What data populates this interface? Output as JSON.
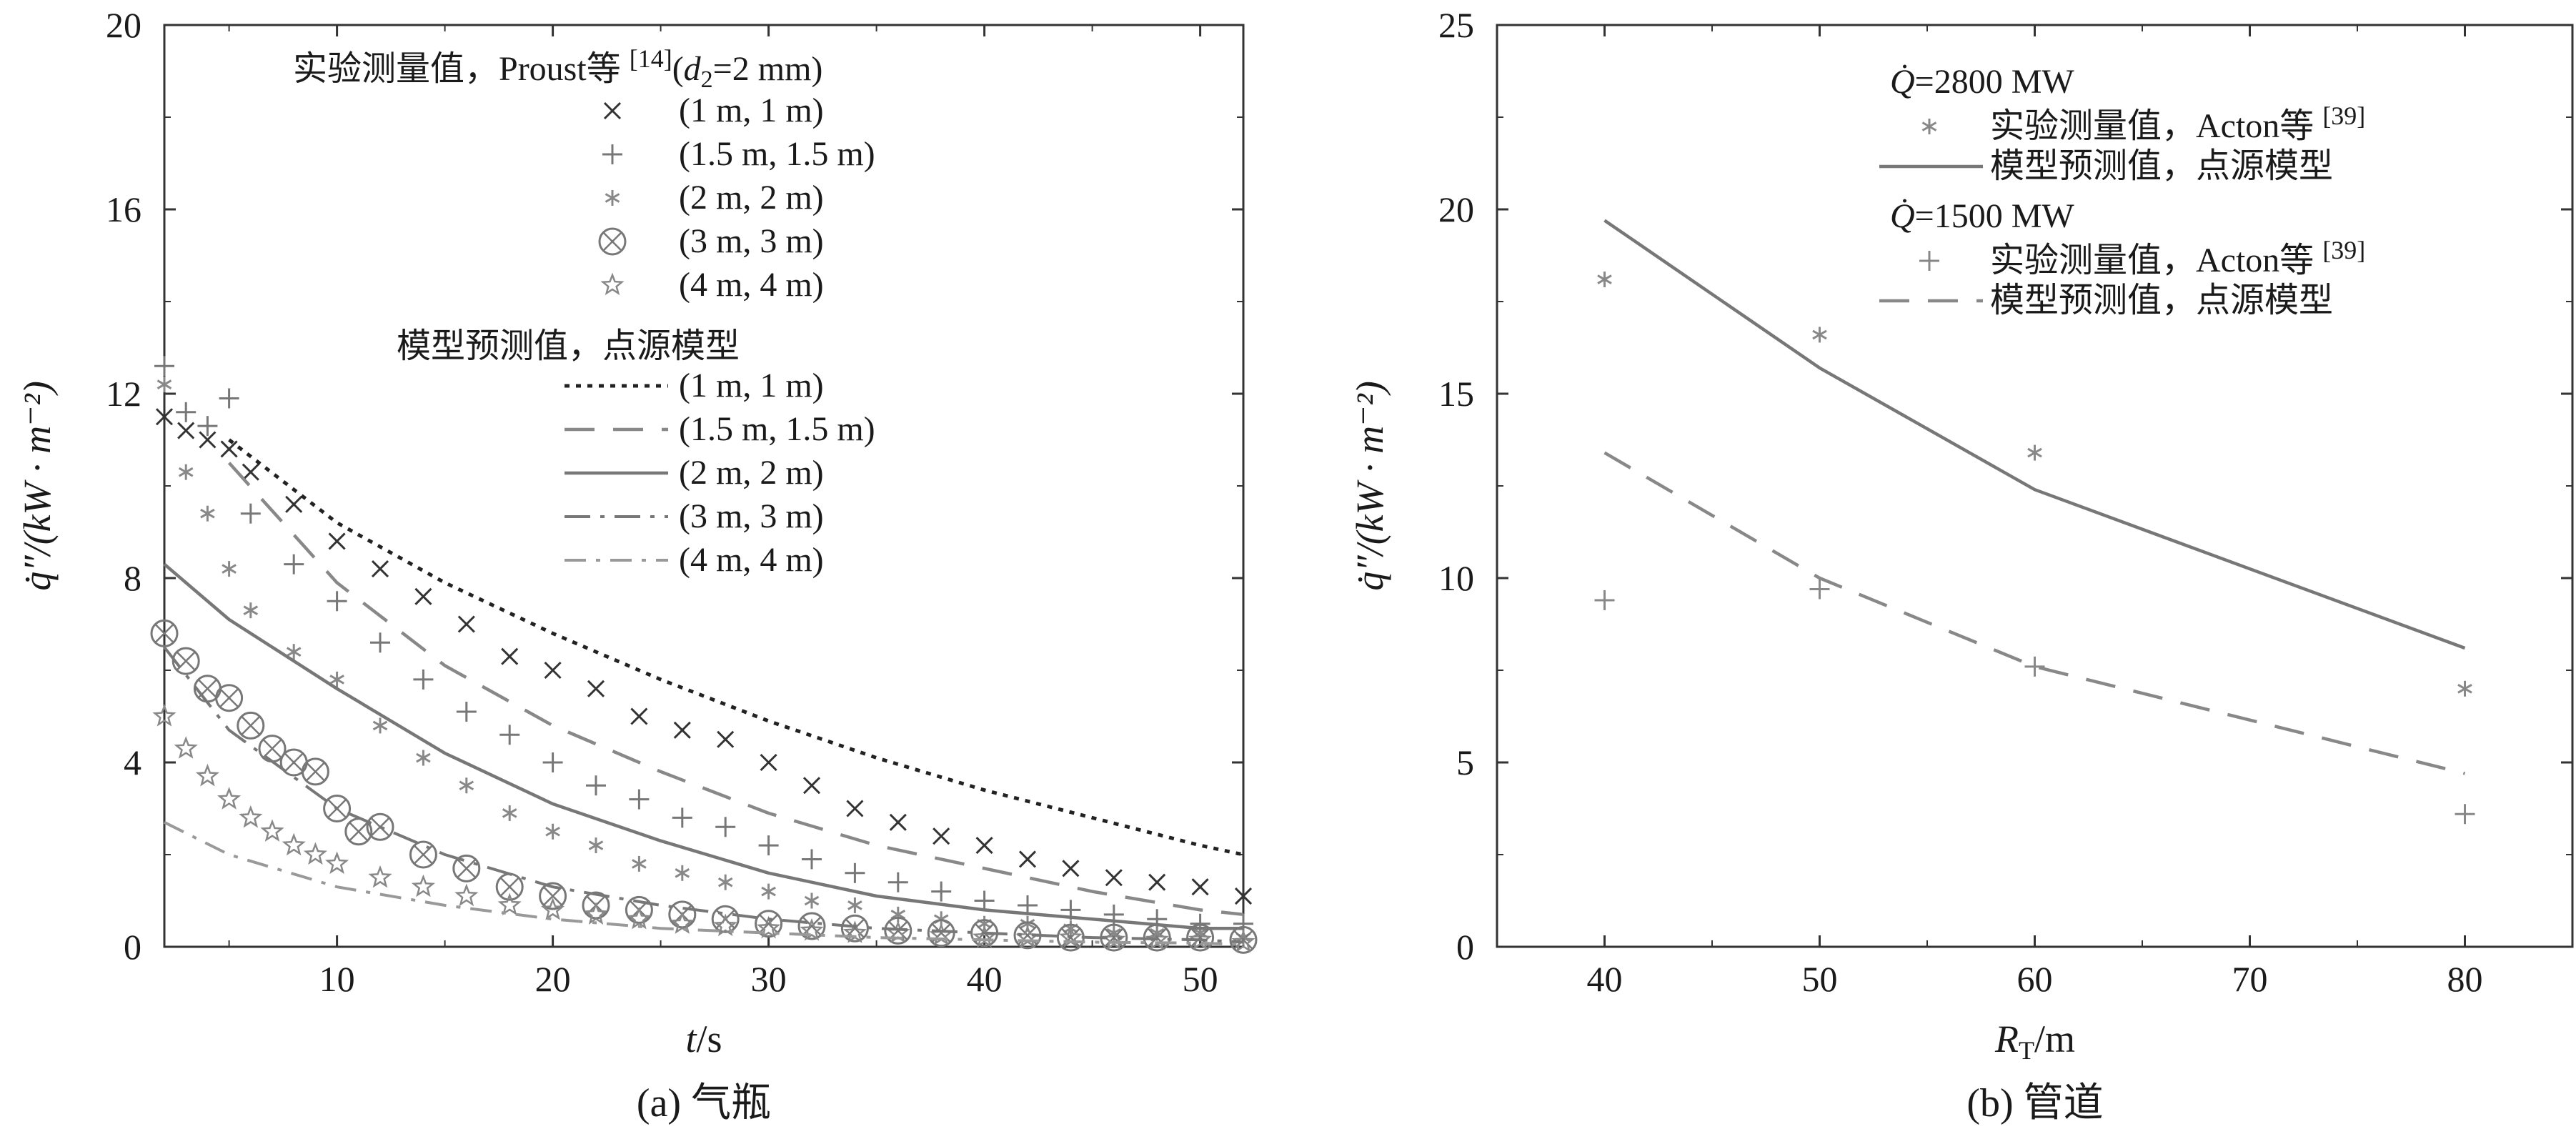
{
  "chart_data": [
    {
      "type": "line",
      "panel": "a",
      "caption": "(a) 气瓶",
      "xlabel": "t/s",
      "ylabel": "q̇″/(kW · m⁻²)",
      "xlim": [
        2,
        52
      ],
      "ylim": [
        0,
        20
      ],
      "xticks": [
        10,
        20,
        30,
        40,
        50
      ],
      "yticks": [
        0,
        4,
        8,
        12,
        16,
        20
      ],
      "legend_header_exp": "实验测量值，Proust等 [14](d₂=2 mm)",
      "legend_header_model": "模型预测值，点源模型",
      "series": [
        {
          "name": "(1 m, 1 m)",
          "kind": "experiment",
          "marker": "x",
          "color": "#333333",
          "x": [
            2,
            3,
            4,
            5,
            6,
            8,
            10,
            12,
            14,
            16,
            18,
            20,
            22,
            24,
            26,
            28,
            30,
            32,
            34,
            36,
            38,
            40,
            42,
            44,
            46,
            48,
            50,
            52
          ],
          "y": [
            11.5,
            11.2,
            11.0,
            10.8,
            10.3,
            9.6,
            8.8,
            8.2,
            7.6,
            7.0,
            6.3,
            6.0,
            5.6,
            5.0,
            4.7,
            4.5,
            4.0,
            3.5,
            3.0,
            2.7,
            2.4,
            2.2,
            1.9,
            1.7,
            1.5,
            1.4,
            1.3,
            1.1
          ]
        },
        {
          "name": "(1.5 m, 1.5 m)",
          "kind": "experiment",
          "marker": "plus",
          "color": "#777777",
          "x": [
            2,
            3,
            4,
            5,
            6,
            8,
            10,
            12,
            14,
            16,
            18,
            20,
            22,
            24,
            26,
            28,
            30,
            32,
            34,
            36,
            38,
            40,
            42,
            44,
            46,
            48,
            50,
            52
          ],
          "y": [
            12.6,
            11.6,
            11.3,
            11.9,
            9.4,
            8.3,
            7.5,
            6.6,
            5.8,
            5.1,
            4.6,
            4.0,
            3.5,
            3.2,
            2.8,
            2.6,
            2.2,
            1.9,
            1.6,
            1.4,
            1.2,
            1.0,
            0.9,
            0.8,
            0.7,
            0.6,
            0.5,
            0.5
          ]
        },
        {
          "name": "(2 m, 2 m)",
          "kind": "experiment",
          "marker": "asterisk",
          "color": "#888888",
          "x": [
            2,
            3,
            4,
            5,
            6,
            8,
            10,
            12,
            14,
            16,
            18,
            20,
            22,
            24,
            26,
            28,
            30,
            32,
            34,
            36,
            38,
            40,
            42,
            44,
            46,
            48,
            50,
            52
          ],
          "y": [
            12.2,
            10.3,
            9.4,
            8.2,
            7.3,
            6.4,
            5.8,
            4.8,
            4.1,
            3.5,
            2.9,
            2.5,
            2.2,
            1.8,
            1.6,
            1.4,
            1.2,
            1.0,
            0.9,
            0.7,
            0.6,
            0.5,
            0.5,
            0.4,
            0.3,
            0.3,
            0.3,
            0.2
          ]
        },
        {
          "name": "(3 m, 3 m)",
          "kind": "experiment",
          "marker": "otimes",
          "color": "#777777",
          "x": [
            2,
            3,
            4,
            5,
            6,
            7,
            8,
            9,
            10,
            11,
            12,
            14,
            16,
            18,
            20,
            22,
            24,
            26,
            28,
            30,
            32,
            34,
            36,
            38,
            40,
            42,
            44,
            46,
            48,
            50,
            52
          ],
          "y": [
            6.8,
            6.2,
            5.6,
            5.4,
            4.8,
            4.3,
            4.0,
            3.8,
            3.0,
            2.5,
            2.6,
            2.0,
            1.7,
            1.3,
            1.1,
            0.9,
            0.8,
            0.7,
            0.6,
            0.5,
            0.45,
            0.4,
            0.35,
            0.3,
            0.3,
            0.25,
            0.2,
            0.2,
            0.2,
            0.2,
            0.15
          ]
        },
        {
          "name": "(4 m, 4 m)",
          "kind": "experiment",
          "marker": "star",
          "color": "#888888",
          "x": [
            2,
            3,
            4,
            5,
            6,
            7,
            8,
            9,
            10,
            12,
            14,
            16,
            18,
            20,
            22,
            24,
            26,
            28,
            30,
            32,
            34,
            36,
            38,
            40,
            42,
            44,
            46,
            48,
            50,
            52
          ],
          "y": [
            5.0,
            4.3,
            3.7,
            3.2,
            2.8,
            2.5,
            2.2,
            2.0,
            1.8,
            1.5,
            1.3,
            1.1,
            0.9,
            0.8,
            0.7,
            0.6,
            0.5,
            0.45,
            0.4,
            0.35,
            0.3,
            0.3,
            0.25,
            0.2,
            0.2,
            0.2,
            0.15,
            0.15,
            0.15,
            0.1
          ]
        },
        {
          "name": "(1 m, 1 m)",
          "kind": "model",
          "dash": "short-dot",
          "color": "#222222",
          "x": [
            5,
            10,
            15,
            20,
            25,
            30,
            35,
            40,
            45,
            50,
            52
          ],
          "y": [
            11.0,
            9.2,
            7.9,
            6.8,
            5.8,
            4.9,
            4.1,
            3.4,
            2.8,
            2.2,
            2.0
          ]
        },
        {
          "name": "(1.5 m, 1.5 m)",
          "kind": "model",
          "dash": "long-dash",
          "color": "#888888",
          "x": [
            5,
            10,
            15,
            20,
            25,
            30,
            35,
            40,
            45,
            50,
            52
          ],
          "y": [
            10.5,
            7.9,
            6.1,
            4.8,
            3.8,
            2.9,
            2.2,
            1.7,
            1.2,
            0.8,
            0.7
          ]
        },
        {
          "name": "(2 m, 2 m)",
          "kind": "model",
          "dash": "solid",
          "color": "#777777",
          "x": [
            2,
            5,
            10,
            15,
            20,
            25,
            30,
            35,
            40,
            45,
            50,
            52
          ],
          "y": [
            8.3,
            7.1,
            5.6,
            4.2,
            3.1,
            2.3,
            1.6,
            1.1,
            0.8,
            0.6,
            0.4,
            0.4
          ]
        },
        {
          "name": "(3 m, 3 m)",
          "kind": "model",
          "dash": "dash-dot",
          "color": "#777777",
          "x": [
            2,
            5,
            10,
            15,
            20,
            25,
            30,
            35,
            40,
            45,
            50,
            52
          ],
          "y": [
            6.5,
            4.7,
            3.0,
            2.0,
            1.3,
            0.9,
            0.6,
            0.4,
            0.3,
            0.2,
            0.15,
            0.1
          ]
        },
        {
          "name": "(4 m, 4 m)",
          "kind": "model",
          "dash": "dash-dot-light",
          "color": "#999999",
          "x": [
            2,
            5,
            10,
            15,
            20,
            25,
            30,
            35,
            40,
            45,
            50,
            52
          ],
          "y": [
            2.7,
            2.0,
            1.3,
            0.9,
            0.6,
            0.4,
            0.3,
            0.2,
            0.15,
            0.1,
            0.08,
            0.05
          ]
        }
      ]
    },
    {
      "type": "line",
      "panel": "b",
      "caption": "(b) 管道",
      "xlabel": "R_T/m",
      "ylabel": "q̇″/(kW · m⁻²)",
      "xlim": [
        35,
        85
      ],
      "ylim": [
        0,
        25
      ],
      "xticks": [
        40,
        50,
        60,
        70,
        80
      ],
      "yticks": [
        0,
        5,
        10,
        15,
        20,
        25
      ],
      "legend_header_2800": "Q̇=2800 MW",
      "legend_header_1500": "Q̇=1500 MW",
      "series": [
        {
          "name": "实验测量值，Acton等 [39]",
          "group": "2800",
          "kind": "experiment",
          "marker": "asterisk",
          "color": "#888888",
          "x": [
            40,
            50,
            60,
            80
          ],
          "y": [
            18.1,
            16.6,
            13.4,
            7.0
          ]
        },
        {
          "name": "模型预测值，点源模型",
          "group": "2800",
          "kind": "model",
          "dash": "solid",
          "color": "#777777",
          "x": [
            40,
            50,
            60,
            80
          ],
          "y": [
            19.7,
            15.7,
            12.4,
            8.1
          ]
        },
        {
          "name": "实验测量值，Acton等 [39]",
          "group": "1500",
          "kind": "experiment",
          "marker": "plus",
          "color": "#888888",
          "x": [
            40,
            50,
            60,
            80
          ],
          "y": [
            9.4,
            9.7,
            7.6,
            3.6
          ]
        },
        {
          "name": "模型预测值，点源模型",
          "group": "1500",
          "kind": "model",
          "dash": "long-dash",
          "color": "#888888",
          "x": [
            40,
            50,
            60,
            80
          ],
          "y": [
            13.4,
            10.0,
            7.6,
            4.7
          ]
        }
      ]
    }
  ]
}
